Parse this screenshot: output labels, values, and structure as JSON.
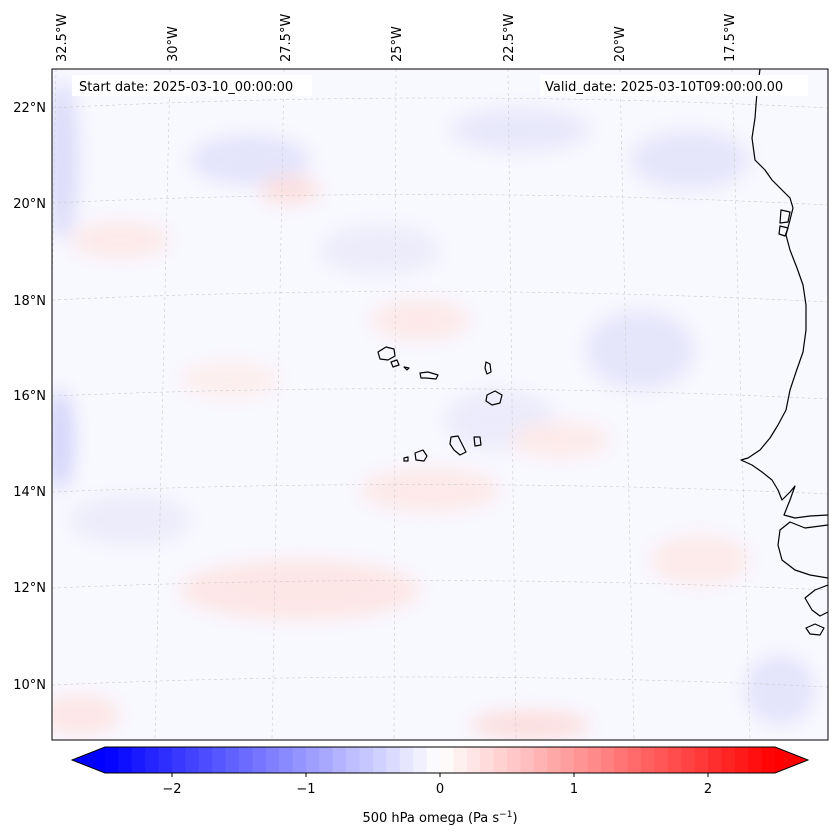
{
  "map": {
    "start_label": "Start date: 2025-03-10_00:00:00",
    "valid_label": "Valid_date: 2025-03-10T09:00:00.00",
    "lon_labels": [
      "32.5°W",
      "30°W",
      "27.5°W",
      "25°W",
      "22.5°W",
      "20°W",
      "17.5°W"
    ],
    "lat_labels": [
      "22°N",
      "20°N",
      "18°N",
      "16°N",
      "14°N",
      "12°N",
      "10°N"
    ]
  },
  "colorbar": {
    "ticks": [
      "−2",
      "−1",
      "0",
      "1",
      "2"
    ],
    "label_main": "500 hPa omega (Pa s",
    "label_exp": "−1",
    "label_end": ")"
  },
  "colors": {
    "neg": "#0000ff",
    "pos": "#ff0000",
    "mid": "#ffffff",
    "coast": "#000000",
    "grid": "#c8c8c8"
  }
}
